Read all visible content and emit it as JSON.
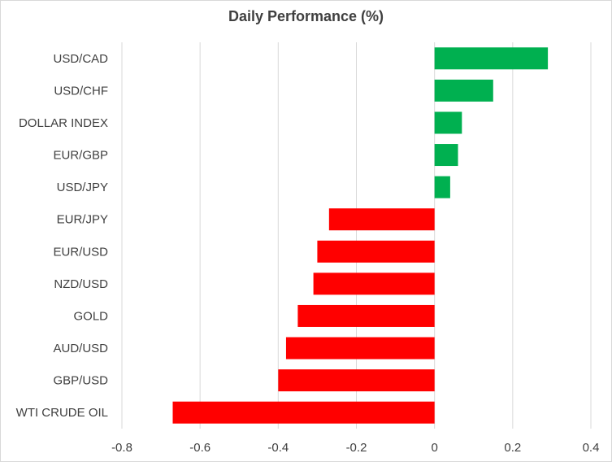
{
  "chart_data": {
    "type": "bar",
    "orientation": "horizontal",
    "title": "Daily Performance  (%)",
    "categories": [
      "USD/CAD",
      "USD/CHF",
      "DOLLAR INDEX",
      "EUR/GBP",
      "USD/JPY",
      "EUR/JPY",
      "EUR/USD",
      "NZD/USD",
      "GOLD",
      "AUD/USD",
      "GBP/USD",
      "WTI CRUDE OIL"
    ],
    "values": [
      0.29,
      0.15,
      0.07,
      0.06,
      0.04,
      -0.27,
      -0.3,
      -0.31,
      -0.35,
      -0.38,
      -0.4,
      -0.67
    ],
    "xlim": [
      -0.8,
      0.4
    ],
    "xticks": [
      -0.8,
      -0.6,
      -0.4,
      -0.2,
      0,
      0.2,
      0.4
    ],
    "xtick_labels": [
      "-0.8",
      "-0.6",
      "-0.4",
      "-0.2",
      "0",
      "0.2",
      "0.4"
    ],
    "grid": true,
    "colors": {
      "positive": "#00b050",
      "negative": "#ff0000",
      "grid": "#d9d9d9"
    }
  }
}
